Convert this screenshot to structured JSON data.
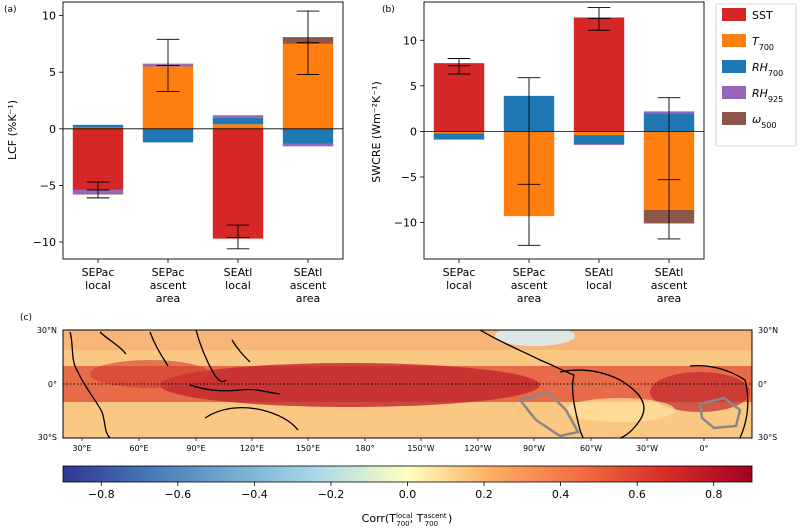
{
  "colors": {
    "sst": "#d62728",
    "t700": "#ff7f0e",
    "rh700": "#1f77b4",
    "rh925": "#9467bd",
    "omega500": "#8c564b"
  },
  "legend": {
    "placement": "outside-right",
    "entries": [
      {
        "key": "sst",
        "base": "SST",
        "sub": ""
      },
      {
        "key": "t700",
        "base": "T",
        "sub": "700"
      },
      {
        "key": "rh700",
        "base": "RH",
        "sub": "700"
      },
      {
        "key": "rh925",
        "base": "RH",
        "sub": "925"
      },
      {
        "key": "omega500",
        "base": "ω",
        "sub": "500"
      }
    ]
  },
  "chart_data": [
    {
      "panel": "(a)",
      "type": "bar",
      "stacked": true,
      "ylabel": "LCF (%K⁻¹)",
      "ylim": [
        -11.5,
        11.2
      ],
      "yticks": [
        -10,
        -5,
        0,
        5,
        10
      ],
      "categories": [
        [
          "SEPac",
          "local"
        ],
        [
          "SEPac",
          "ascent",
          "area"
        ],
        [
          "SEAtl",
          "local"
        ],
        [
          "SEAtl",
          "ascent",
          "area"
        ]
      ],
      "series": [
        {
          "key": "sst",
          "name": "SST",
          "values": [
            -5.4,
            0.0,
            -9.7,
            0.0
          ]
        },
        {
          "key": "t700",
          "name": "T700",
          "values": [
            0.1,
            5.5,
            0.4,
            7.5
          ]
        },
        {
          "key": "rh700",
          "name": "RH700",
          "values": [
            0.25,
            -1.2,
            0.55,
            -1.3
          ]
        },
        {
          "key": "rh925",
          "name": "RH925",
          "values": [
            -0.3,
            0.2,
            0.25,
            -0.25
          ]
        },
        {
          "key": "omega500",
          "name": "ω500",
          "values": [
            -0.1,
            0.05,
            0.0,
            0.6
          ]
        }
      ],
      "error_bars": [
        {
          "center": -5.4,
          "low": -6.1,
          "high": -4.7
        },
        {
          "center": 5.6,
          "low": 3.3,
          "high": 7.9
        },
        {
          "center": -9.6,
          "low": -10.6,
          "high": -8.5
        },
        {
          "center": 7.6,
          "low": 4.8,
          "high": 10.4
        }
      ],
      "zero_line": true
    },
    {
      "panel": "(b)",
      "type": "bar",
      "stacked": true,
      "ylabel": "SWCRE (Wm⁻²K⁻¹)",
      "ylim": [
        -14.0,
        14.2
      ],
      "yticks": [
        -10,
        -5,
        0,
        5,
        10
      ],
      "categories": [
        [
          "SEPac",
          "local"
        ],
        [
          "SEPac",
          "ascent",
          "area"
        ],
        [
          "SEAtl",
          "local"
        ],
        [
          "SEAtl",
          "ascent",
          "area"
        ]
      ],
      "series": [
        {
          "key": "sst",
          "name": "SST",
          "values": [
            7.4,
            0.0,
            12.5,
            0.0
          ]
        },
        {
          "key": "t700",
          "name": "T700",
          "values": [
            -0.2,
            -9.3,
            -0.4,
            -8.6
          ]
        },
        {
          "key": "rh700",
          "name": "RH700",
          "values": [
            -0.7,
            3.9,
            -1.0,
            2.0
          ]
        },
        {
          "key": "rh925",
          "name": "RH925",
          "values": [
            0.0,
            0.0,
            -0.1,
            0.2
          ]
        },
        {
          "key": "omega500",
          "name": "ω500",
          "values": [
            0.1,
            0.0,
            0.0,
            -1.5
          ]
        }
      ],
      "error_bars": [
        {
          "center": 7.2,
          "low": 6.3,
          "high": 8.0
        },
        {
          "center": -5.8,
          "low": -12.5,
          "high": 5.9
        },
        {
          "center": 12.4,
          "low": 11.1,
          "high": 13.6
        },
        {
          "center": -5.3,
          "low": -11.8,
          "high": 3.7
        }
      ],
      "zero_line": true
    },
    {
      "panel": "(c)",
      "type": "heatmap",
      "xticks": [
        "30°E",
        "60°E",
        "90°E",
        "120°E",
        "150°E",
        "180°",
        "150°W",
        "120°W",
        "90°W",
        "60°W",
        "30°W",
        "0°"
      ],
      "ytick_labels": [
        "30°N",
        "0°",
        "30°S"
      ],
      "colorbar": {
        "range": [
          -0.9,
          0.9
        ],
        "ticks": [
          -0.8,
          -0.6,
          -0.4,
          -0.2,
          0.0,
          0.2,
          0.4,
          0.6,
          0.8
        ],
        "tick_labels": [
          "−0.8",
          "−0.6",
          "−0.4",
          "−0.2",
          "0.0",
          "0.2",
          "0.4",
          "0.6",
          "0.8"
        ],
        "label_prefix": "Corr(",
        "label_t1_sup": "local",
        "label_t2_sup": "ascent",
        "label_t_base": "T",
        "label_t_sub": "700",
        "label_sep": ", ",
        "label_suffix": ")"
      }
    }
  ]
}
